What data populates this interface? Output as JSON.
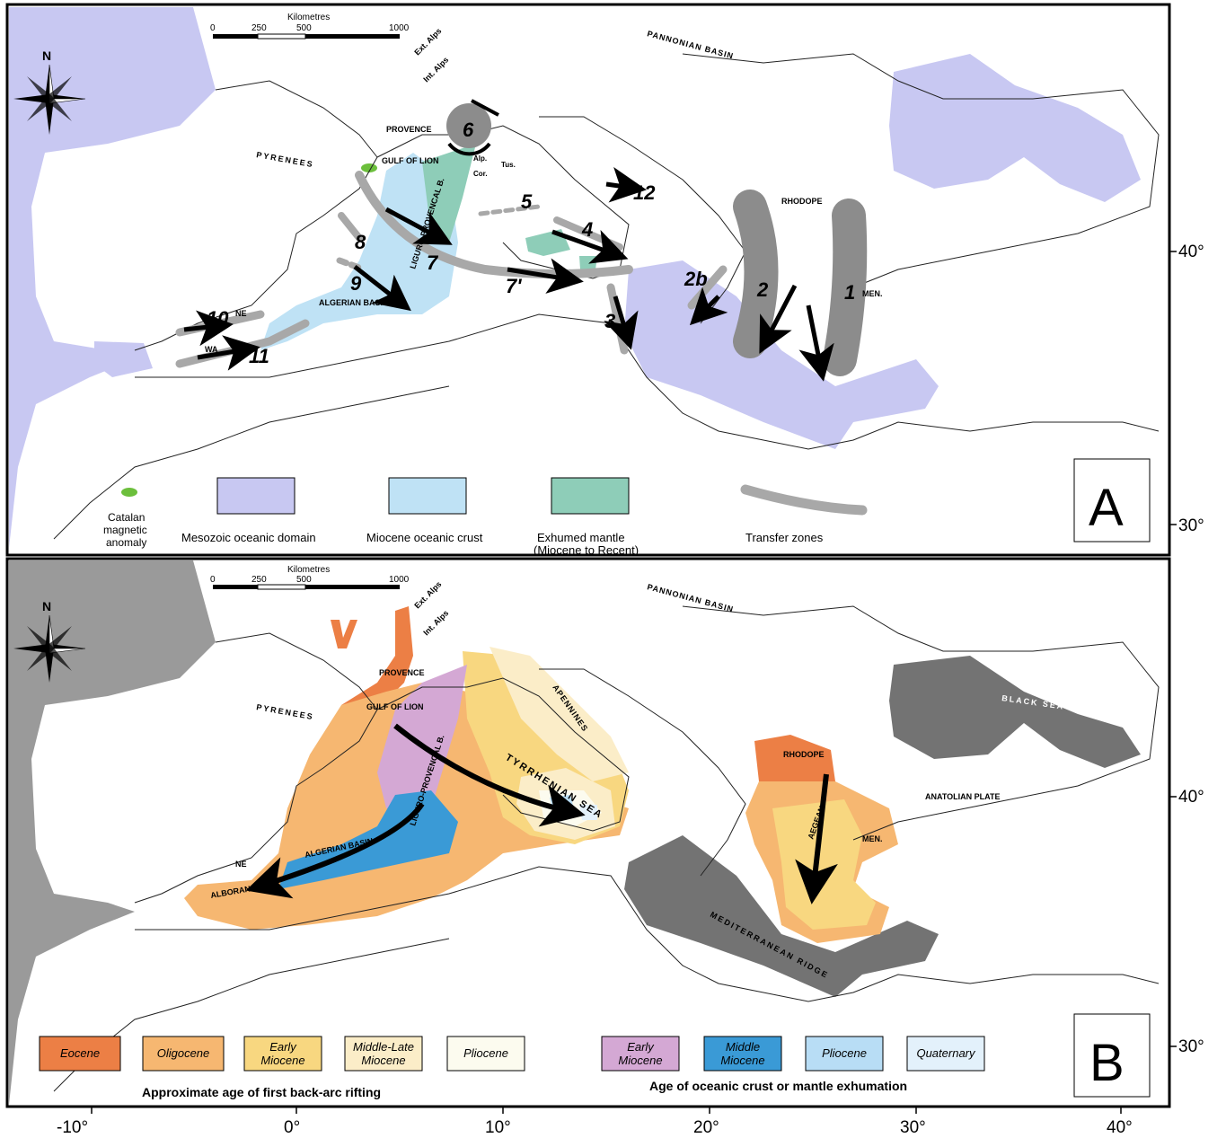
{
  "scale": {
    "title": "Kilometres",
    "ticks": [
      "0",
      "250",
      "500",
      "1000"
    ]
  },
  "north": "N",
  "lat_labels": [
    "40°",
    "30°",
    "40°",
    "30°"
  ],
  "lon_labels": [
    "-10°",
    "0°",
    "10°",
    "20°",
    "30°",
    "40°"
  ],
  "panelA": {
    "letter": "A",
    "places": {
      "pannonian": "PANNONIAN BASIN",
      "ext_alps": "Ext. Alps",
      "int_alps": "Int. Alps",
      "provence": "PROVENCE",
      "pyrenees": "PYRENEES",
      "gulf_lion": "GULF OF LION",
      "liguro": "LIGURO-PROVENCAL B.",
      "algerian": "ALGERIAN BASIN",
      "rhodope": "RHODOPE",
      "men": "MEN.",
      "ne": "NE",
      "wa": "WA",
      "alp": "Alp.",
      "cor": "Cor.",
      "tus": "Tus."
    },
    "numbers": [
      "1",
      "2",
      "2b",
      "3",
      "4",
      "5",
      "6",
      "7",
      "7'",
      "8",
      "9",
      "10",
      "11",
      "12"
    ],
    "legend": {
      "catalan": "Catalan magnetic anomaly",
      "mesozoic": "Mesozoic oceanic domain",
      "miocene": "Miocene oceanic crust",
      "exhumed": "Exhumed mantle (Miocene to Recent)",
      "transfer": "Transfer zones"
    },
    "colors": {
      "mesozoic": "#c8c8f2",
      "miocene": "#bfe2f5",
      "exhumed": "#8ecdb8",
      "catalan": "#6cbf3c",
      "transfer": "#a8a8a8"
    }
  },
  "panelB": {
    "letter": "B",
    "places": {
      "pannonian": "PANNONIAN BASIN",
      "ext_alps": "Ext. Alps",
      "int_alps": "Int. Alps",
      "provence": "PROVENCE",
      "pyrenees": "PYRENEES",
      "gulf_lion": "GULF OF LION",
      "liguro": "LIGURO-PROVENCAL B.",
      "algerian": "ALGERIAN BASIN",
      "alboran": "ALBORAN SEA",
      "tyrrhenian": "TYRRHENIAN SEA",
      "apennines": "APENNINES",
      "rhodope": "RHODOPE",
      "anatolian": "ANATOLIAN PLATE",
      "black_sea": "BLACK SEA",
      "med_ridge": "MEDITERRANEAN RIDGE",
      "men": "MEN.",
      "aegean": "AEGEAN",
      "ne": "NE"
    },
    "rifting_legend": [
      {
        "label": "Eocene",
        "color": "#ec7f45"
      },
      {
        "label": "Oligocene",
        "color": "#f6b771"
      },
      {
        "label": "Early Miocene",
        "color": "#f8d780"
      },
      {
        "label": "Middle-Late Miocene",
        "color": "#fbedc8"
      },
      {
        "label": "Pliocene",
        "color": "#fcfbef"
      }
    ],
    "crust_legend": [
      {
        "label": "Early Miocene",
        "color": "#d4a8d4"
      },
      {
        "label": "Middle Miocene",
        "color": "#3a9ad6"
      },
      {
        "label": "Pliocene",
        "color": "#b8ddf5"
      },
      {
        "label": "Quaternary",
        "color": "#e3f1fb"
      }
    ],
    "rifting_caption": "Approximate age of first back-arc rifting",
    "crust_caption": "Age of oceanic crust or mantle exhumation",
    "colors": {
      "old_ocean": "#737373",
      "atlantic": "#9a9a9a"
    }
  }
}
